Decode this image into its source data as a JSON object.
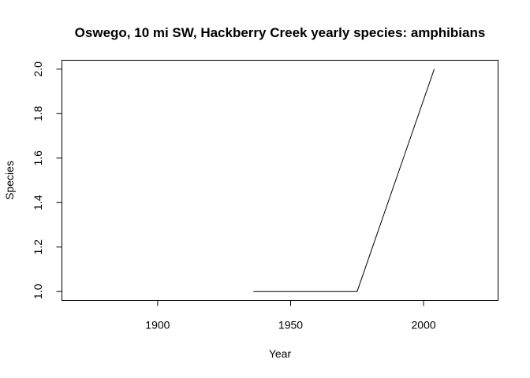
{
  "chart_data": {
    "type": "line",
    "title": "Oswego, 10 mi SW, Hackberry Creek yearly species: amphibians",
    "xlabel": "Year",
    "ylabel": "Species",
    "xlim": [
      1864,
      2028
    ],
    "ylim": [
      0.96,
      2.04
    ],
    "x_ticks": [
      1900,
      1950,
      2000
    ],
    "y_ticks": [
      1.0,
      1.2,
      1.4,
      1.6,
      1.8,
      2.0
    ],
    "y_tick_labels": [
      "1.0",
      "1.2",
      "1.4",
      "1.6",
      "1.8",
      "2.0"
    ],
    "grid": false,
    "legend": "none",
    "series": [
      {
        "x": [
          1936,
          1975,
          2004
        ],
        "y": [
          1,
          1,
          2
        ]
      }
    ]
  }
}
